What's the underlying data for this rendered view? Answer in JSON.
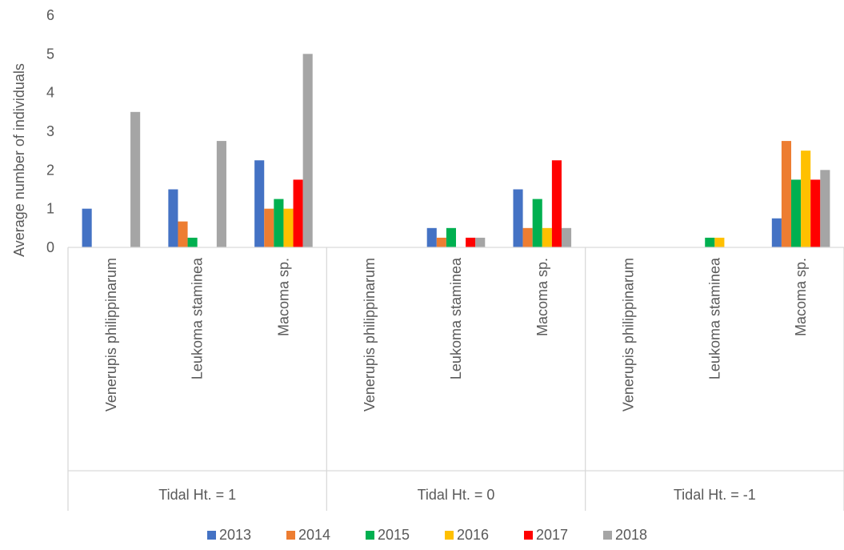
{
  "chart_data": {
    "type": "bar",
    "title": "",
    "ylabel": "Average number of individuals",
    "xlabel": "",
    "ylim": [
      0,
      6
    ],
    "yticks": [
      0,
      1,
      2,
      3,
      4,
      5,
      6
    ],
    "grid": false,
    "legend_position": "bottom",
    "groups": [
      "Tidal Ht. = 1",
      "Tidal Ht. = 0",
      "Tidal Ht. = -1"
    ],
    "categories": [
      "Venerupis philippinarum",
      "Leukoma staminea",
      "Macoma sp."
    ],
    "series": [
      {
        "name": "2013",
        "color": "#4472C4",
        "values": [
          [
            1.0,
            1.5,
            2.25
          ],
          [
            0,
            0.5,
            1.5
          ],
          [
            0,
            0,
            0.75
          ]
        ]
      },
      {
        "name": "2014",
        "color": "#ED7D31",
        "values": [
          [
            0,
            0.67,
            1.0
          ],
          [
            0,
            0.25,
            0.5
          ],
          [
            0,
            0,
            2.75
          ]
        ]
      },
      {
        "name": "2015",
        "color": "#00B050",
        "values": [
          [
            0,
            0.25,
            1.25
          ],
          [
            0,
            0.5,
            1.25
          ],
          [
            0,
            0.25,
            1.75
          ]
        ]
      },
      {
        "name": "2016",
        "color": "#FFC000",
        "values": [
          [
            0,
            0,
            1.0
          ],
          [
            0,
            0,
            0.5
          ],
          [
            0,
            0.25,
            2.5
          ]
        ]
      },
      {
        "name": "2017",
        "color": "#FF0000",
        "values": [
          [
            0,
            0,
            1.75
          ],
          [
            0,
            0.25,
            2.25
          ],
          [
            0,
            0,
            1.75
          ]
        ]
      },
      {
        "name": "2018",
        "color": "#A5A5A5",
        "values": [
          [
            3.5,
            2.75,
            5.0
          ],
          [
            0,
            0.25,
            0.5
          ],
          [
            0,
            0,
            2.0
          ]
        ]
      }
    ]
  }
}
